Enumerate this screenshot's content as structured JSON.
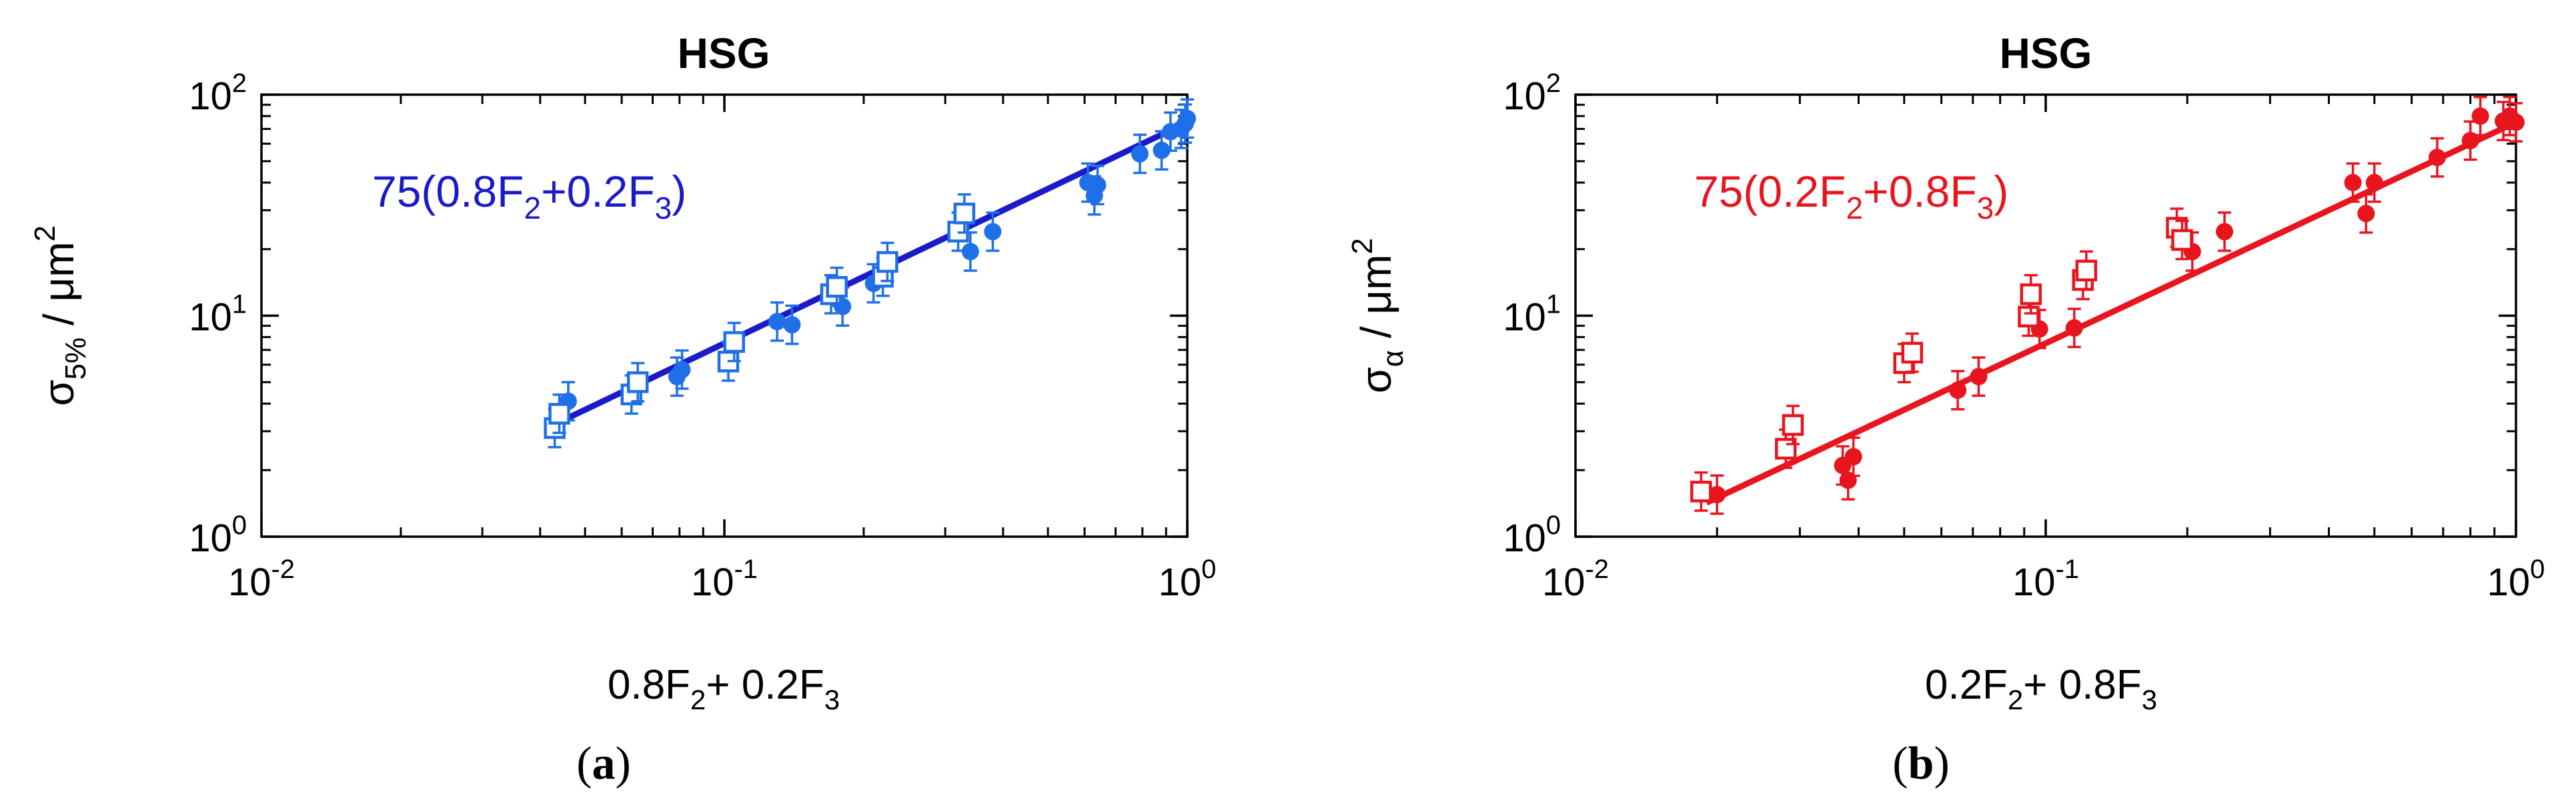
{
  "chart_data": [
    {
      "type": "scatter",
      "panel_label": {
        "open": "(",
        "letter": "a",
        "close": ")"
      },
      "title": "HSG",
      "x_scale": "log",
      "y_scale": "log",
      "xlim": [
        0.01,
        1
      ],
      "ylim": [
        1,
        100
      ],
      "x_ticks": [
        {
          "base": "10",
          "exp": "-2",
          "value": 0.01
        },
        {
          "base": "10",
          "exp": "-1",
          "value": 0.1
        },
        {
          "base": "10",
          "exp": "0",
          "value": 1
        }
      ],
      "y_ticks": [
        {
          "base": "10",
          "exp": "0",
          "value": 1
        },
        {
          "base": "10",
          "exp": "1",
          "value": 10
        },
        {
          "base": "10",
          "exp": "2",
          "value": 100
        }
      ],
      "xlabel": {
        "parts": [
          "0.8F",
          "2",
          "+ 0.2F",
          "3"
        ]
      },
      "ylabel": {
        "sym": "σ",
        "sub": "5%",
        "sep": " / μm",
        "sup": "2"
      },
      "color": "#1f6fe8",
      "fit_color": "#1a1ac8",
      "fit": {
        "label_parts": [
          "75(0.8F",
          "2",
          "+0.2F",
          "3",
          ")"
        ],
        "coefficient": 75,
        "exponent": 1,
        "x_range": [
          0.044,
          1
        ]
      },
      "series": [
        {
          "marker": "filled-circle",
          "points": [
            [
              0.046,
              4.1
            ],
            [
              0.079,
              5.3
            ],
            [
              0.081,
              5.7
            ],
            [
              0.13,
              9.4
            ],
            [
              0.14,
              9.1
            ],
            [
              0.18,
              11.0
            ],
            [
              0.21,
              14.0
            ],
            [
              0.34,
              19.5
            ],
            [
              0.38,
              24.0
            ],
            [
              0.61,
              40.0
            ],
            [
              0.63,
              35.0
            ],
            [
              0.64,
              39.0
            ],
            [
              0.79,
              54.0
            ],
            [
              0.88,
              56.0
            ],
            [
              0.92,
              68.0
            ],
            [
              0.97,
              70.0
            ],
            [
              0.99,
              74.0
            ],
            [
              1.0,
              78.0
            ]
          ]
        },
        {
          "marker": "open-square",
          "points": [
            [
              0.043,
              3.1
            ],
            [
              0.044,
              3.6
            ],
            [
              0.063,
              4.4
            ],
            [
              0.065,
              5.0
            ],
            [
              0.102,
              6.2
            ],
            [
              0.105,
              7.6
            ],
            [
              0.17,
              12.5
            ],
            [
              0.175,
              13.5
            ],
            [
              0.22,
              15.0
            ],
            [
              0.225,
              17.5
            ],
            [
              0.32,
              24.0
            ],
            [
              0.33,
              29.0
            ]
          ]
        }
      ]
    },
    {
      "type": "scatter",
      "panel_label": {
        "open": "(",
        "letter": "b",
        "close": ")"
      },
      "title": "HSG",
      "x_scale": "log",
      "y_scale": "log",
      "xlim": [
        0.01,
        1
      ],
      "ylim": [
        1,
        100
      ],
      "x_ticks": [
        {
          "base": "10",
          "exp": "-2",
          "value": 0.01
        },
        {
          "base": "10",
          "exp": "-1",
          "value": 0.1
        },
        {
          "base": "10",
          "exp": "0",
          "value": 1
        }
      ],
      "y_ticks": [
        {
          "base": "10",
          "exp": "0",
          "value": 1
        },
        {
          "base": "10",
          "exp": "1",
          "value": 10
        },
        {
          "base": "10",
          "exp": "2",
          "value": 100
        }
      ],
      "xlabel": {
        "parts": [
          "0.2F",
          "2",
          "+ 0.8F",
          "3"
        ]
      },
      "ylabel": {
        "sym": "σ",
        "sub": "α",
        "sep": " / μm",
        "sup": "2"
      },
      "color": "#e8141e",
      "fit_color": "#e8141e",
      "fit": {
        "label_parts": [
          "75(0.2F",
          "2",
          "+0.8F",
          "3",
          ")"
        ],
        "coefficient": 75,
        "exponent": 1,
        "x_range": [
          0.019,
          1
        ]
      },
      "series": [
        {
          "marker": "filled-circle",
          "points": [
            [
              0.02,
              1.55
            ],
            [
              0.037,
              2.1
            ],
            [
              0.038,
              1.8
            ],
            [
              0.039,
              2.3
            ],
            [
              0.065,
              4.6
            ],
            [
              0.072,
              5.3
            ],
            [
              0.097,
              8.7
            ],
            [
              0.115,
              8.8
            ],
            [
              0.205,
              19.5
            ],
            [
              0.24,
              24.0
            ],
            [
              0.45,
              40.0
            ],
            [
              0.48,
              29.0
            ],
            [
              0.5,
              40.0
            ],
            [
              0.68,
              52.0
            ],
            [
              0.8,
              62.0
            ],
            [
              0.84,
              80.0
            ],
            [
              0.94,
              76.0
            ],
            [
              0.97,
              80.0
            ],
            [
              1.0,
              75.0
            ]
          ]
        },
        {
          "marker": "open-square",
          "points": [
            [
              0.0185,
              1.6
            ],
            [
              0.028,
              2.5
            ],
            [
              0.029,
              3.2
            ],
            [
              0.05,
              6.1
            ],
            [
              0.052,
              6.8
            ],
            [
              0.092,
              9.9
            ],
            [
              0.093,
              12.5
            ],
            [
              0.12,
              14.5
            ],
            [
              0.122,
              16.0
            ],
            [
              0.19,
              25.0
            ],
            [
              0.195,
              22.0
            ]
          ]
        }
      ]
    }
  ]
}
